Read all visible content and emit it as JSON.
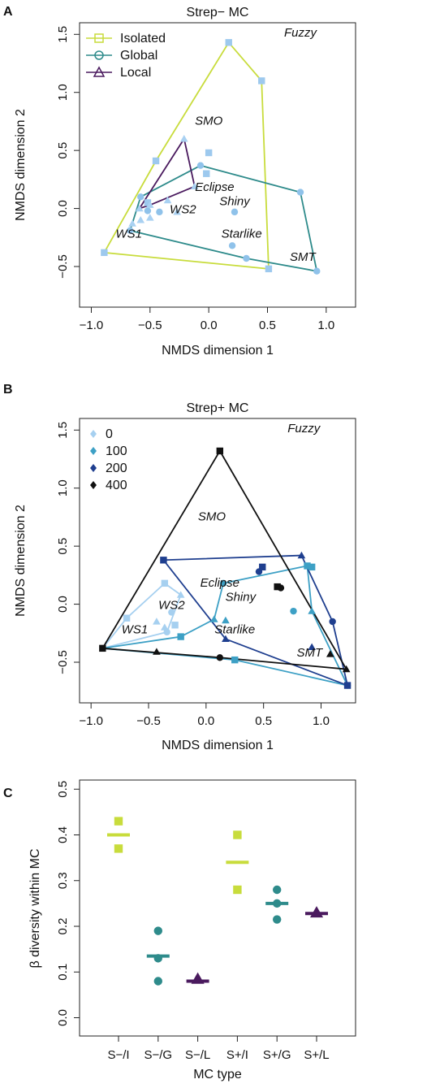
{
  "colors": {
    "isolated": "#C8DC3C",
    "global": "#2E8B8B",
    "local": "#4A1A5E",
    "iso_pts": "#9DC9EE",
    "conc_0": "#A6D0F0",
    "conc_100": "#3DA0C5",
    "conc_200": "#1F3F8F",
    "conc_400": "#111111"
  },
  "chart_data": [
    {
      "panel": "A",
      "type": "scatter",
      "title": "Strep− MC",
      "xlabel": "NMDS dimension 1",
      "ylabel": "NMDS dimension 2",
      "xlim": [
        -1.1,
        1.25
      ],
      "ylim": [
        -0.85,
        1.6
      ],
      "xticks": [
        "−1.0",
        "−0.5",
        "0.0",
        "0.5",
        "1.0"
      ],
      "yticks": [
        "−0.5",
        "0.0",
        "0.5",
        "1.0",
        "1.5"
      ],
      "legend": {
        "position": "top-left",
        "entries": [
          {
            "label": "Isolated",
            "marker": "square",
            "color_key": "isolated"
          },
          {
            "label": "Global",
            "marker": "circle",
            "color_key": "global"
          },
          {
            "label": "Local",
            "marker": "triangle",
            "color_key": "local"
          }
        ]
      },
      "morphotypes": [
        {
          "label": "Fuzzy",
          "x": 0.78,
          "y": 1.48
        },
        {
          "label": "SMO",
          "x": 0.0,
          "y": 0.72
        },
        {
          "label": "Eclipse",
          "x": 0.05,
          "y": 0.15
        },
        {
          "label": "Shiny",
          "x": 0.22,
          "y": 0.03
        },
        {
          "label": "WS2",
          "x": -0.22,
          "y": -0.04
        },
        {
          "label": "Starlike",
          "x": 0.28,
          "y": -0.25
        },
        {
          "label": "WS1",
          "x": -0.68,
          "y": -0.25
        },
        {
          "label": "SMT",
          "x": 0.8,
          "y": -0.45
        }
      ],
      "series": [
        {
          "name": "Isolated",
          "color_key": "isolated",
          "marker": "square",
          "hull": [
            [
              0.17,
              1.43
            ],
            [
              0.45,
              1.1
            ],
            [
              0.51,
              -0.52
            ],
            [
              -0.89,
              -0.38
            ],
            [
              -0.45,
              0.41
            ]
          ],
          "points": [
            [
              0.17,
              1.43
            ],
            [
              0.45,
              1.1
            ],
            [
              0.51,
              -0.52
            ],
            [
              -0.89,
              -0.38
            ],
            [
              -0.45,
              0.41
            ],
            [
              0.0,
              0.48
            ],
            [
              -0.02,
              0.3
            ],
            [
              -0.52,
              0.05
            ]
          ]
        },
        {
          "name": "Global",
          "color_key": "global",
          "marker": "circle",
          "hull": [
            [
              -0.07,
              0.37
            ],
            [
              0.78,
              0.14
            ],
            [
              0.92,
              -0.54
            ],
            [
              0.32,
              -0.43
            ],
            [
              -0.67,
              -0.19
            ],
            [
              -0.58,
              0.1
            ]
          ],
          "points": [
            [
              -0.07,
              0.37
            ],
            [
              0.78,
              0.14
            ],
            [
              0.92,
              -0.54
            ],
            [
              0.32,
              -0.43
            ],
            [
              -0.67,
              -0.19
            ],
            [
              -0.58,
              0.1
            ],
            [
              0.22,
              -0.03
            ],
            [
              0.2,
              -0.32
            ],
            [
              -0.42,
              -0.03
            ],
            [
              -0.52,
              -0.02
            ]
          ]
        },
        {
          "name": "Local",
          "color_key": "local",
          "marker": "triangle",
          "hull": [
            [
              -0.21,
              0.6
            ],
            [
              -0.12,
              0.19
            ],
            [
              -0.5,
              0.03
            ],
            [
              -0.59,
              0.0
            ]
          ],
          "points": [
            [
              -0.21,
              0.6
            ],
            [
              -0.12,
              0.19
            ],
            [
              -0.5,
              0.03
            ],
            [
              -0.59,
              0.0
            ],
            [
              -0.35,
              0.07
            ],
            [
              -0.27,
              -0.03
            ],
            [
              -0.5,
              -0.08
            ],
            [
              -0.58,
              -0.1
            ],
            [
              -0.65,
              -0.13
            ]
          ]
        }
      ]
    },
    {
      "panel": "B",
      "type": "scatter",
      "title": "Strep+ MC",
      "xlabel": "NMDS dimension 1",
      "ylabel": "NMDS dimension 2",
      "xlim": [
        -1.1,
        1.3
      ],
      "ylim": [
        -0.85,
        1.6
      ],
      "xticks": [
        "−1.0",
        "−0.5",
        "0.0",
        "0.5",
        "1.0"
      ],
      "yticks": [
        "−0.5",
        "0.0",
        "0.5",
        "1.0",
        "1.5"
      ],
      "legend": {
        "position": "top-left",
        "entries": [
          {
            "label": "0",
            "marker": "diamond",
            "color_key": "conc_0"
          },
          {
            "label": "100",
            "marker": "diamond",
            "color_key": "conc_100"
          },
          {
            "label": "200",
            "marker": "diamond",
            "color_key": "conc_200"
          },
          {
            "label": "400",
            "marker": "diamond",
            "color_key": "conc_400"
          }
        ]
      },
      "morphotypes": [
        {
          "label": "Fuzzy",
          "x": 0.85,
          "y": 1.48
        },
        {
          "label": "SMO",
          "x": 0.05,
          "y": 0.72
        },
        {
          "label": "Eclipse",
          "x": 0.12,
          "y": 0.15
        },
        {
          "label": "Shiny",
          "x": 0.3,
          "y": 0.03
        },
        {
          "label": "WS2",
          "x": -0.3,
          "y": -0.04
        },
        {
          "label": "Starlike",
          "x": 0.25,
          "y": -0.25
        },
        {
          "label": "WS1",
          "x": -0.62,
          "y": -0.25
        },
        {
          "label": "SMT",
          "x": 0.9,
          "y": -0.45
        }
      ],
      "series": [
        {
          "name": "0",
          "color_key": "conc_0",
          "hull": [
            [
              -0.36,
              0.18
            ],
            [
              -0.22,
              0.08
            ],
            [
              -0.34,
              -0.24
            ],
            [
              -0.9,
              -0.38
            ],
            [
              -0.69,
              -0.12
            ]
          ],
          "points": [
            [
              -0.36,
              0.18
            ],
            [
              -0.22,
              0.08
            ],
            [
              -0.34,
              -0.24
            ],
            [
              -0.69,
              -0.12
            ],
            [
              -0.43,
              -0.15
            ],
            [
              -0.3,
              -0.07
            ],
            [
              -0.27,
              -0.18
            ],
            [
              -0.36,
              -0.2
            ]
          ]
        },
        {
          "name": "100",
          "color_key": "conc_100",
          "hull": [
            [
              -0.22,
              -0.28
            ],
            [
              0.07,
              -0.13
            ],
            [
              0.15,
              0.18
            ],
            [
              0.88,
              0.33
            ],
            [
              0.92,
              -0.06
            ],
            [
              1.23,
              -0.7
            ],
            [
              0.25,
              -0.48
            ],
            [
              -0.9,
              -0.38
            ]
          ],
          "points": [
            [
              -0.22,
              -0.28
            ],
            [
              0.07,
              -0.13
            ],
            [
              0.15,
              0.18
            ],
            [
              0.88,
              0.33
            ],
            [
              0.92,
              -0.06
            ],
            [
              1.23,
              -0.7
            ],
            [
              0.25,
              -0.48
            ],
            [
              0.17,
              -0.14
            ],
            [
              0.76,
              -0.06
            ],
            [
              0.92,
              0.32
            ]
          ]
        },
        {
          "name": "200",
          "color_key": "conc_200",
          "hull": [
            [
              -0.37,
              0.38
            ],
            [
              0.83,
              0.42
            ],
            [
              1.1,
              -0.15
            ],
            [
              1.23,
              -0.7
            ],
            [
              0.17,
              -0.3
            ]
          ],
          "points": [
            [
              -0.37,
              0.38
            ],
            [
              0.83,
              0.42
            ],
            [
              1.1,
              -0.15
            ],
            [
              1.23,
              -0.7
            ],
            [
              0.17,
              -0.3
            ],
            [
              0.46,
              0.28
            ],
            [
              0.49,
              0.32
            ],
            [
              0.92,
              -0.37
            ]
          ]
        },
        {
          "name": "400",
          "color_key": "conc_400",
          "hull": [
            [
              0.12,
              1.32
            ],
            [
              1.22,
              -0.56
            ],
            [
              0.12,
              -0.46
            ],
            [
              -0.9,
              -0.38
            ]
          ],
          "points": [
            [
              0.12,
              1.32
            ],
            [
              1.22,
              -0.56
            ],
            [
              0.12,
              -0.46
            ],
            [
              -0.9,
              -0.38
            ],
            [
              -0.43,
              -0.41
            ],
            [
              0.65,
              0.14
            ],
            [
              0.62,
              0.15
            ],
            [
              1.08,
              -0.43
            ]
          ]
        }
      ]
    },
    {
      "panel": "C",
      "type": "scatter",
      "title": "",
      "xlabel": "MC type",
      "ylabel": "β diversity within MC",
      "ylim": [
        -0.04,
        0.52
      ],
      "yticks": [
        "0.0",
        "0.1",
        "0.2",
        "0.3",
        "0.4",
        "0.5"
      ],
      "categories": [
        "S−/I",
        "S−/G",
        "S−/L",
        "S+/I",
        "S+/G",
        "S+/L"
      ],
      "groups": [
        {
          "category": "S−/I",
          "color_key": "isolated",
          "marker": "square",
          "values": [
            0.43,
            0.37
          ],
          "mean": 0.4
        },
        {
          "category": "S−/G",
          "color_key": "global",
          "marker": "circle",
          "values": [
            0.19,
            0.13,
            0.08
          ],
          "mean": 0.135
        },
        {
          "category": "S−/L",
          "color_key": "local",
          "marker": "triangle",
          "values": [
            0.085
          ],
          "mean": 0.08
        },
        {
          "category": "S+/I",
          "color_key": "isolated",
          "marker": "square",
          "values": [
            0.4,
            0.28
          ],
          "mean": 0.34
        },
        {
          "category": "S+/G",
          "color_key": "global",
          "marker": "circle",
          "values": [
            0.28,
            0.25,
            0.215
          ],
          "mean": 0.25
        },
        {
          "category": "S+/L",
          "color_key": "local",
          "marker": "triangle",
          "values": [
            0.23
          ],
          "mean": 0.228
        }
      ]
    }
  ]
}
